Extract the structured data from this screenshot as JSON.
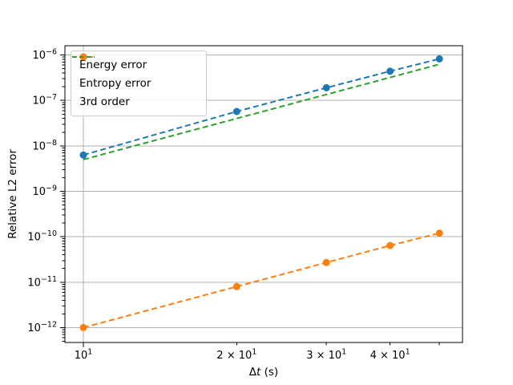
{
  "chart_data": {
    "type": "line",
    "title": "",
    "xlabel_parts": {
      "prefix": "Δ",
      "variable": "t",
      "suffix": " (s)"
    },
    "ylabel": "Relative L2 error",
    "x_scale": "log",
    "y_scale": "log",
    "xlim": [
      9.2,
      55.5
    ],
    "ylim": [
      4.7e-13,
      1.6e-06
    ],
    "grid": "major",
    "x_ticks": [
      {
        "value": 10,
        "major": true,
        "grid": true,
        "label": {
          "prefix": "",
          "base": "10",
          "exp": "1"
        }
      },
      {
        "value": 20,
        "major": false,
        "grid": false,
        "label": {
          "prefix": "2 × ",
          "base": "10",
          "exp": "1"
        }
      },
      {
        "value": 30,
        "major": false,
        "grid": false,
        "label": {
          "prefix": "3 × ",
          "base": "10",
          "exp": "1"
        }
      },
      {
        "value": 40,
        "major": false,
        "grid": false,
        "label": {
          "prefix": "4 × ",
          "base": "10",
          "exp": "1"
        }
      },
      {
        "value": 50,
        "major": false,
        "grid": false,
        "label": null
      }
    ],
    "y_ticks": [
      {
        "value": 1e-06,
        "label": {
          "base": "10",
          "exp": "−6"
        }
      },
      {
        "value": 1e-07,
        "label": {
          "base": "10",
          "exp": "−7"
        }
      },
      {
        "value": 1e-08,
        "label": {
          "base": "10",
          "exp": "−8"
        }
      },
      {
        "value": 1e-09,
        "label": {
          "base": "10",
          "exp": "−9"
        }
      },
      {
        "value": 1e-10,
        "label": {
          "base": "10",
          "exp": "−10"
        }
      },
      {
        "value": 1e-11,
        "label": {
          "base": "10",
          "exp": "−11"
        }
      },
      {
        "value": 1e-12,
        "label": {
          "base": "10",
          "exp": "−12"
        }
      }
    ],
    "series": [
      {
        "name": "Energy error",
        "color": "#1f77b4",
        "linestyle": "dashed",
        "marker": "circle",
        "x": [
          10,
          20,
          30,
          40,
          50
        ],
        "y": [
          6.3e-09,
          5.7e-08,
          1.9e-07,
          4.4e-07,
          8.2e-07
        ]
      },
      {
        "name": "Entropy error",
        "color": "#ff7f0e",
        "linestyle": "dashed",
        "marker": "circle",
        "x": [
          10,
          20,
          30,
          40,
          50
        ],
        "y": [
          1e-12,
          8e-12,
          2.7e-11,
          6.4e-11,
          1.2e-10
        ]
      },
      {
        "name": "3rd order",
        "color": "#2ca02c",
        "linestyle": "dashed",
        "marker": "none",
        "x": [
          10,
          20,
          30,
          40,
          50
        ],
        "y": [
          5e-09,
          4e-08,
          1.35e-07,
          3.2e-07,
          6.25e-07
        ]
      }
    ],
    "legend": {
      "position": "upper-left",
      "items": [
        "Energy error",
        "Entropy error",
        "3rd order"
      ]
    },
    "colors": {
      "grid": "#b0b0b0",
      "frame": "#000000",
      "text": "#000000",
      "background": "#ffffff"
    }
  }
}
